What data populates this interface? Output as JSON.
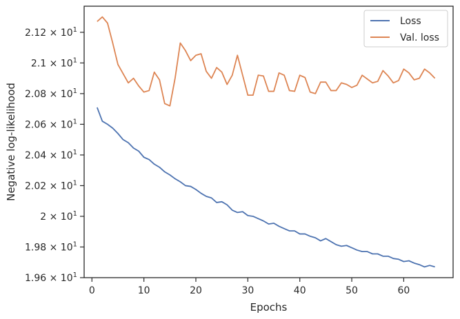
{
  "chart_data": {
    "type": "line",
    "title": "",
    "xlabel": "Epochs",
    "ylabel": "Negative log-likelihood",
    "xlim": [
      -1.5,
      69.5
    ],
    "ylim": [
      19.6,
      21.37
    ],
    "grid": false,
    "legend_position": "top-right",
    "x_ticks": [
      0,
      10,
      20,
      30,
      40,
      50,
      60
    ],
    "x_tick_labels": [
      "0",
      "10",
      "20",
      "30",
      "40",
      "50",
      "60"
    ],
    "y_ticks": [
      19.6,
      19.8,
      20.0,
      20.2,
      20.4,
      20.6,
      20.8,
      21.0,
      21.2
    ],
    "y_tick_mantissas": [
      "1.96",
      "1.98",
      "2",
      "2.02",
      "2.04",
      "2.06",
      "2.08",
      "2.1",
      "2.12"
    ],
    "y_tick_base": "10",
    "y_tick_exponent": "1",
    "x": [
      1,
      2,
      3,
      4,
      5,
      6,
      7,
      8,
      9,
      10,
      11,
      12,
      13,
      14,
      15,
      16,
      17,
      18,
      19,
      20,
      21,
      22,
      23,
      24,
      25,
      26,
      27,
      28,
      29,
      30,
      31,
      32,
      33,
      34,
      35,
      36,
      37,
      38,
      39,
      40,
      41,
      42,
      43,
      44,
      45,
      46,
      47,
      48,
      49,
      50,
      51,
      52,
      53,
      54,
      55,
      56,
      57,
      58,
      59,
      60,
      61,
      62,
      63,
      64,
      65,
      66
    ],
    "series": [
      {
        "name": "Loss",
        "color": "#4c72b0",
        "values": [
          20.71,
          20.62,
          20.6,
          20.575,
          20.54,
          20.5,
          20.48,
          20.445,
          20.425,
          20.385,
          20.37,
          20.34,
          20.32,
          20.29,
          20.27,
          20.245,
          20.225,
          20.2,
          20.195,
          20.175,
          20.15,
          20.13,
          20.12,
          20.09,
          20.095,
          20.075,
          20.04,
          20.025,
          20.03,
          20.005,
          20.0,
          19.985,
          19.97,
          19.95,
          19.955,
          19.935,
          19.92,
          19.905,
          19.905,
          19.885,
          19.885,
          19.87,
          19.86,
          19.84,
          19.855,
          19.835,
          19.815,
          19.805,
          19.81,
          19.795,
          19.78,
          19.77,
          19.77,
          19.755,
          19.755,
          19.74,
          19.74,
          19.725,
          19.72,
          19.705,
          19.71,
          19.695,
          19.685,
          19.67,
          19.68,
          19.67
        ]
      },
      {
        "name": "Val. loss",
        "color": "#dd8452",
        "values": [
          21.27,
          21.3,
          21.26,
          21.13,
          20.99,
          20.93,
          20.87,
          20.9,
          20.85,
          20.81,
          20.82,
          20.94,
          20.89,
          20.735,
          20.72,
          20.9,
          21.13,
          21.08,
          21.015,
          21.05,
          21.06,
          20.945,
          20.9,
          20.97,
          20.94,
          20.86,
          20.92,
          21.05,
          20.92,
          20.79,
          20.79,
          20.92,
          20.915,
          20.815,
          20.815,
          20.935,
          20.92,
          20.82,
          20.815,
          20.92,
          20.905,
          20.81,
          20.8,
          20.875,
          20.875,
          20.82,
          20.82,
          20.87,
          20.86,
          20.84,
          20.855,
          20.92,
          20.895,
          20.87,
          20.88,
          20.95,
          20.915,
          20.87,
          20.885,
          20.96,
          20.935,
          20.89,
          20.9,
          20.96,
          20.935,
          20.9
        ]
      }
    ]
  }
}
